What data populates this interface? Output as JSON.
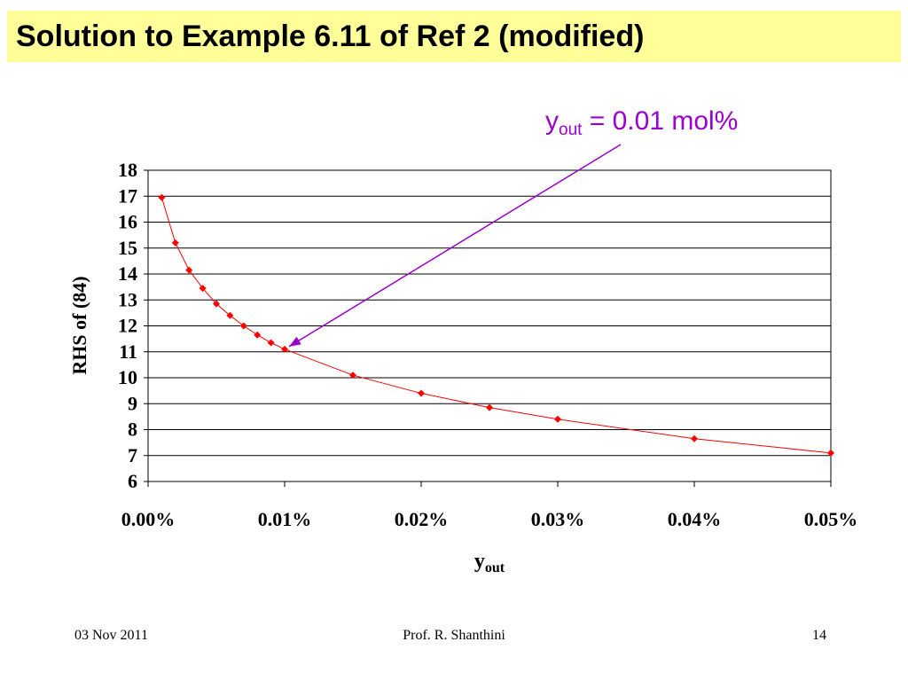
{
  "slide": {
    "title": "Solution to Example 6.11 of Ref 2 (modified)",
    "footer_left": "03 Nov 2011",
    "footer_center": "Prof. R. Shanthini",
    "footer_right": "14"
  },
  "colors": {
    "title_bg": "#ffff99",
    "series": "#ff0000",
    "annotation": "#9900cc"
  },
  "chart_data": {
    "type": "line",
    "title": "",
    "xlabel": "y",
    "xlabel_sub": "out",
    "ylabel": "RHS of (84)",
    "xlim": [
      0,
      0.0005
    ],
    "ylim": [
      6,
      18
    ],
    "x_ticks": [
      "0.00%",
      "0.01%",
      "0.02%",
      "0.03%",
      "0.04%",
      "0.05%"
    ],
    "y_ticks": [
      "6",
      "7",
      "8",
      "9",
      "10",
      "11",
      "12",
      "13",
      "14",
      "15",
      "16",
      "17",
      "18"
    ],
    "grid": "horizontal",
    "legend": "none",
    "series": [
      {
        "x": [
          1e-05,
          2e-05,
          3e-05,
          4e-05,
          5e-05,
          6e-05,
          7e-05,
          8e-05,
          9e-05,
          0.0001,
          0.00015,
          0.0002,
          0.00025,
          0.0003,
          0.0004,
          0.0005
        ],
        "y": [
          16.95,
          15.2,
          14.15,
          13.45,
          12.85,
          12.4,
          12.0,
          11.65,
          11.35,
          11.1,
          10.1,
          9.4,
          8.85,
          8.4,
          7.65,
          7.1
        ]
      }
    ],
    "annotation": {
      "text_main": "y",
      "text_sub": "out",
      "text_rest": " = 0.01 mol%",
      "points_to": [
        0.0001,
        11.1
      ]
    }
  }
}
